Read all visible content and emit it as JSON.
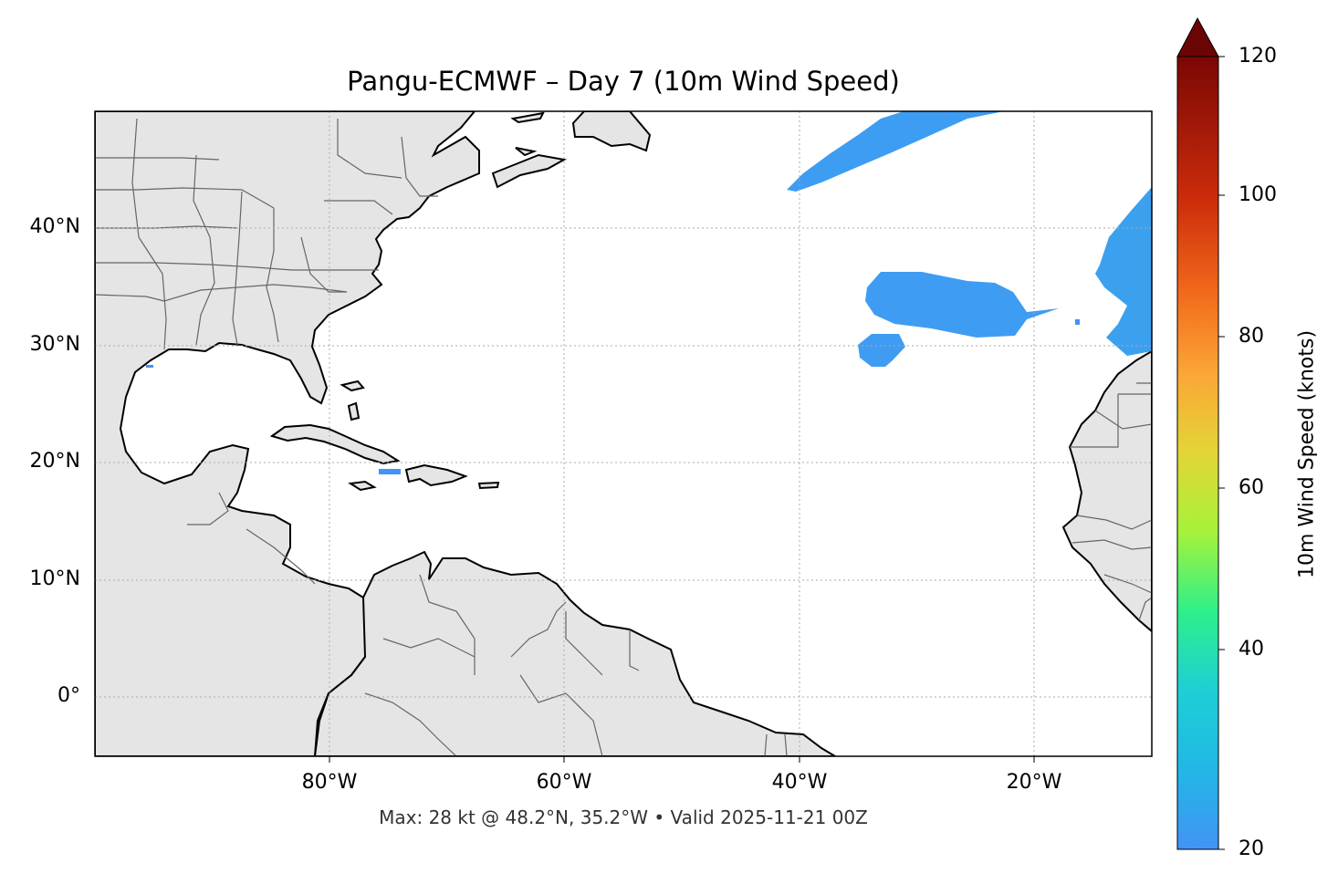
{
  "title": "Pangu-ECMWF – Day 7 (10m Wind Speed)",
  "subtitle": "Max: 28 kt @ 48.2°N, 35.2°W • Valid 2025-11-21 00Z",
  "lat_labels": [
    "40°N",
    "30°N",
    "20°N",
    "10°N",
    "0°"
  ],
  "lon_labels": [
    "80°W",
    "60°W",
    "40°W",
    "20°W"
  ],
  "colorbar": {
    "label": "10m Wind Speed (knots)",
    "ticks": [
      "120",
      "100",
      "80",
      "60",
      "40",
      "20"
    ],
    "min": 20,
    "max": 120,
    "extend": "max",
    "colormap": "turbo-like",
    "colors": [
      "#4393f5",
      "#1ecfd5",
      "#2df08a",
      "#a6f23a",
      "#e3d537",
      "#fba636",
      "#f26b1c",
      "#cc2c0a",
      "#8a0e04",
      "#6b0505"
    ]
  },
  "map": {
    "land_color": "#e5e5e5",
    "ocean_color": "#ffffff",
    "coast_color": "#000000",
    "border_color": "#666666",
    "gridlines": true,
    "extent": {
      "lon_min": -100,
      "lon_max": -10,
      "lat_min": -5,
      "lat_max": 50
    }
  },
  "wind_features": [
    {
      "name": "north-atlantic-jet",
      "region": "40-50°N, 20-40°W",
      "speed_kt": 28
    },
    {
      "name": "central-atlantic-patch",
      "region": "33-37°N, 22-33°W",
      "speed_kt": 25
    },
    {
      "name": "azores-patch",
      "region": "29-31°N, 30-34°W",
      "speed_kt": 23
    },
    {
      "name": "canary-patch",
      "region": "30-43°N, 10-14°W",
      "speed_kt": 24
    }
  ]
}
